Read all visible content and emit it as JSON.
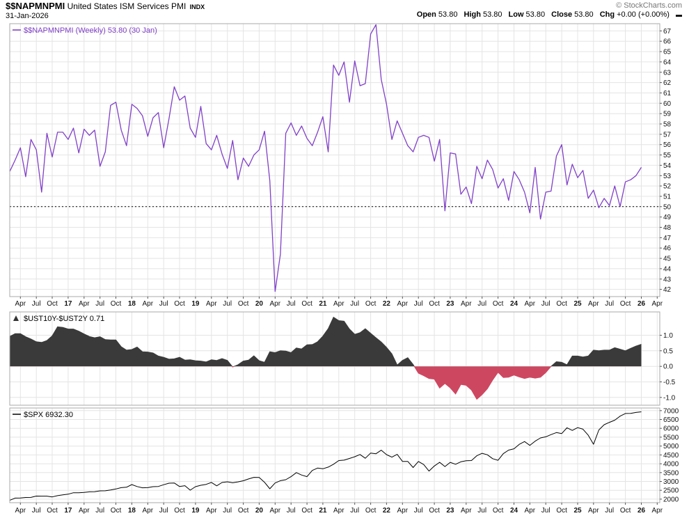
{
  "header": {
    "symbol": "$$NAPMNPMI",
    "description": "United States ISM Services PMI",
    "exchange": "INDX",
    "date": "31-Jan-2026",
    "copyright": "© StockCharts.com",
    "quote": {
      "open_label": "Open",
      "open_value": "53.80",
      "high_label": "High",
      "high_value": "53.80",
      "low_label": "Low",
      "low_value": "53.80",
      "close_label": "Close",
      "close_value": "53.80",
      "chg_label": "Chg",
      "chg_value": "+0.00 (+0.00%)",
      "collapse_icon": "▬"
    }
  },
  "colors": {
    "pmi_line": "#8040C8",
    "spread_positive": "#3A3A3A",
    "spread_negative": "#CE4760",
    "spx_line": "#000000",
    "grid": "#E4E4E4",
    "border": "#AAAAAA",
    "axis_text": "#111111",
    "reference_line": "#000000"
  },
  "xaxis": {
    "xlim": [
      2016.083,
      2026.29
    ],
    "first_tick": 2016.25,
    "last_tick": 2026.25,
    "labels": [
      "Apr",
      "Jul",
      "Oct",
      "17",
      "Apr",
      "Jul",
      "Oct",
      "18",
      "Apr",
      "Jul",
      "Oct",
      "19",
      "Apr",
      "Jul",
      "Oct",
      "20",
      "Apr",
      "Jul",
      "Oct",
      "21",
      "Apr",
      "Jul",
      "Oct",
      "22",
      "Apr",
      "Jul",
      "Oct",
      "23",
      "Apr",
      "Jul",
      "Oct",
      "24",
      "Apr",
      "Jul",
      "Oct",
      "25",
      "Apr",
      "Jul",
      "Oct",
      "26",
      "Apr"
    ]
  },
  "chart_data": [
    {
      "type": "line",
      "name": "$$NAPMNPMI (Weekly)",
      "legend": "$$NAPMNPMI (Weekly) 53.80 (30 Jan)",
      "last_value": 53.8,
      "start": "2016-02",
      "freq": "monthly",
      "values": [
        53.4,
        54.5,
        55.7,
        52.9,
        56.5,
        55.5,
        51.4,
        57.1,
        54.8,
        57.2,
        57.2,
        56.5,
        57.6,
        55.2,
        57.5,
        56.9,
        57.4,
        53.9,
        55.3,
        59.8,
        60.1,
        57.4,
        55.9,
        59.9,
        59.5,
        58.8,
        56.8,
        58.6,
        59.1,
        55.7,
        58.5,
        61.6,
        60.3,
        60.7,
        57.6,
        56.7,
        59.7,
        56.1,
        55.5,
        56.9,
        55.1,
        53.7,
        56.4,
        52.6,
        54.7,
        53.9,
        55.0,
        55.5,
        57.3,
        52.5,
        41.8,
        45.4,
        57.1,
        58.1,
        56.9,
        57.8,
        56.6,
        55.9,
        57.2,
        58.7,
        55.3,
        63.7,
        62.7,
        64.0,
        60.1,
        64.1,
        61.7,
        61.9,
        66.7,
        67.6,
        62.3,
        59.9,
        56.5,
        58.3,
        57.1,
        55.9,
        55.3,
        56.7,
        56.9,
        56.7,
        54.4,
        56.5,
        49.6,
        55.2,
        55.1,
        51.2,
        51.9,
        50.3,
        53.9,
        52.7,
        54.5,
        53.6,
        51.8,
        52.7,
        50.6,
        53.4,
        52.6,
        51.4,
        49.4,
        53.8,
        48.8,
        51.4,
        51.5,
        54.9,
        56.0,
        52.1,
        54.1,
        52.8,
        53.5,
        50.8,
        51.6,
        49.9,
        50.8,
        50.1,
        52.0,
        50.0,
        52.4,
        52.6,
        53.0,
        53.8
      ],
      "ylim": [
        41.3,
        67.7
      ],
      "yticks": {
        "min": 42,
        "max": 67,
        "step": 1,
        "decimals": 0
      },
      "reference_line": 50,
      "color": "#8040C8",
      "legend_color": "#8040C8",
      "marker": "line",
      "width": 1.3
    },
    {
      "type": "area",
      "name": "$UST10Y-$UST2Y",
      "legend": "$UST10Y-$UST2Y 0.71",
      "last_value": 0.71,
      "start": "2016-02",
      "freq": "monthly",
      "values": [
        0.96,
        1.05,
        1.05,
        0.95,
        0.88,
        0.79,
        0.77,
        0.83,
        0.98,
        1.27,
        1.25,
        1.2,
        1.2,
        1.13,
        1.04,
        0.96,
        0.92,
        0.95,
        0.86,
        0.85,
        0.85,
        0.63,
        0.52,
        0.54,
        0.62,
        0.47,
        0.46,
        0.43,
        0.33,
        0.29,
        0.23,
        0.24,
        0.29,
        0.2,
        0.21,
        0.18,
        0.17,
        0.14,
        0.21,
        0.19,
        0.25,
        0.19,
        -0.02,
        0.05,
        0.17,
        0.2,
        0.34,
        0.18,
        0.13,
        0.47,
        0.44,
        0.5,
        0.49,
        0.44,
        0.59,
        0.56,
        0.69,
        0.7,
        0.79,
        0.97,
        1.21,
        1.58,
        1.47,
        1.45,
        1.2,
        1.03,
        1.08,
        1.21,
        1.06,
        0.92,
        0.78,
        0.61,
        0.4,
        0.04,
        0.19,
        0.28,
        0.06,
        -0.22,
        -0.3,
        -0.39,
        -0.41,
        -0.7,
        -0.55,
        -0.69,
        -0.89,
        -0.58,
        -0.61,
        -0.76,
        -1.06,
        -0.91,
        -0.72,
        -0.44,
        -0.19,
        -0.36,
        -0.35,
        -0.28,
        -0.34,
        -0.39,
        -0.35,
        -0.38,
        -0.35,
        -0.2,
        0.0,
        0.15,
        0.13,
        0.05,
        0.33,
        0.33,
        0.3,
        0.33,
        0.52,
        0.5,
        0.52,
        0.52,
        0.6,
        0.55,
        0.5,
        0.58,
        0.65,
        0.71
      ],
      "ylim": [
        -1.25,
        1.75
      ],
      "yticks": {
        "min": -1.0,
        "max": 1.0,
        "step": 0.5,
        "decimals": 1
      },
      "color_positive": "#3A3A3A",
      "color_negative": "#CE4760",
      "legend_color": "#000000",
      "marker": "area"
    },
    {
      "type": "line",
      "name": "$SPX",
      "legend": "$SPX 6932.30",
      "last_value": 6932.3,
      "start": "2016-02",
      "freq": "monthly",
      "values": [
        1932,
        2060,
        2065,
        2097,
        2099,
        2174,
        2171,
        2168,
        2126,
        2199,
        2239,
        2279,
        2364,
        2363,
        2384,
        2412,
        2423,
        2470,
        2472,
        2519,
        2575,
        2648,
        2674,
        2824,
        2714,
        2641,
        2648,
        2705,
        2718,
        2816,
        2902,
        2914,
        2712,
        2760,
        2507,
        2704,
        2785,
        2834,
        2946,
        2752,
        2942,
        2980,
        2926,
        2977,
        3038,
        3141,
        3231,
        3226,
        2954,
        2585,
        2912,
        3044,
        3100,
        3271,
        3500,
        3363,
        3270,
        3622,
        3756,
        3714,
        3811,
        3973,
        4181,
        4204,
        4298,
        4395,
        4523,
        4308,
        4605,
        4567,
        4766,
        4516,
        4374,
        4530,
        4132,
        4132,
        3785,
        4130,
        3955,
        3586,
        3872,
        4080,
        3840,
        4077,
        3970,
        4109,
        4169,
        4180,
        4450,
        4589,
        4508,
        4288,
        4194,
        4568,
        4770,
        4846,
        5096,
        5254,
        5036,
        5278,
        5460,
        5522,
        5648,
        5762,
        5705,
        6032,
        5882,
        6041,
        5955,
        5612,
        5100,
        5912,
        6205,
        6340,
        6460,
        6688,
        6840,
        6849,
        6900,
        6932
      ],
      "ylim": [
        1800,
        7150
      ],
      "yticks": {
        "min": 2000,
        "max": 7000,
        "step": 500,
        "decimals": 0
      },
      "color": "#000000",
      "legend_color": "#000000",
      "marker": "line",
      "width": 1
    }
  ]
}
